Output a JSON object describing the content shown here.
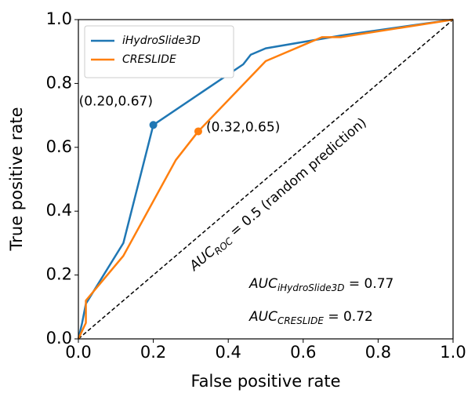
{
  "chart_data": {
    "type": "line",
    "xlabel": "False positive rate",
    "ylabel": "True positive rate",
    "xlim": [
      0,
      1
    ],
    "ylim": [
      0,
      1
    ],
    "xticks": [
      {
        "value": 0,
        "label": "0.0"
      },
      {
        "value": 0.2,
        "label": "0.2"
      },
      {
        "value": 0.4,
        "label": "0.4"
      },
      {
        "value": 0.6,
        "label": "0.6"
      },
      {
        "value": 0.8,
        "label": "0.8"
      },
      {
        "value": 1,
        "label": "1.0"
      }
    ],
    "yticks": [
      {
        "value": 0,
        "label": "0.0"
      },
      {
        "value": 0.2,
        "label": "0.2"
      },
      {
        "value": 0.4,
        "label": "0.4"
      },
      {
        "value": 0.6,
        "label": "0.6"
      },
      {
        "value": 0.8,
        "label": "0.8"
      },
      {
        "value": 1,
        "label": "1.0"
      }
    ],
    "legend": "upper left",
    "diagonal": true,
    "series": [
      {
        "name": "iHydroSlide3D",
        "color": "#1f77b4",
        "x": [
          0,
          0.01,
          0.02,
          0.12,
          0.2,
          0.44,
          0.46,
          0.5,
          0.6,
          0.7,
          1
        ],
        "values": [
          0,
          0.05,
          0.11,
          0.3,
          0.67,
          0.86,
          0.89,
          0.91,
          0.93,
          0.95,
          1
        ]
      },
      {
        "name": "CRESLIDE",
        "color": "#ff7f0e",
        "x": [
          0,
          0.02,
          0.02,
          0.12,
          0.26,
          0.32,
          0.5,
          0.58,
          0.65,
          0.7,
          1
        ],
        "values": [
          0,
          0.05,
          0.12,
          0.26,
          0.56,
          0.65,
          0.87,
          0.91,
          0.945,
          0.945,
          1
        ]
      }
    ],
    "points": [
      {
        "x": 0.2,
        "y": 0.67,
        "label": "(0.20,0.67)"
      },
      {
        "x": 0.32,
        "y": 0.65,
        "label": "(0.32,0.65)"
      }
    ],
    "diagonal_label": {
      "base": "AUC",
      "sub": "ROC",
      "rest": " = 0.5 (random prediction)"
    },
    "auc_labels": [
      {
        "base": "AUC",
        "sub": "iHydroSlide3D",
        "rest": " = 0.77"
      },
      {
        "base": "AUC",
        "sub": "CRESLIDE",
        "rest": " = 0.72"
      }
    ]
  }
}
